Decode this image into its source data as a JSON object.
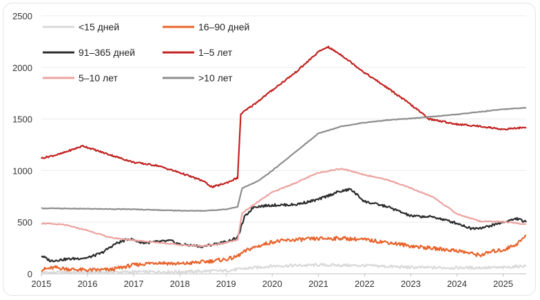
{
  "chart_data": {
    "type": "line",
    "title": "",
    "xlabel": "",
    "ylabel": "",
    "xlim": [
      2015,
      2025.5
    ],
    "ylim": [
      0,
      2500
    ],
    "yticks": [
      0,
      500,
      1000,
      1500,
      2000,
      2500
    ],
    "xticks": [
      2015,
      2016,
      2017,
      2018,
      2019,
      2020,
      2021,
      2022,
      2023,
      2024,
      2025
    ],
    "grid": "horizontal",
    "legend_position": "top-left",
    "series": [
      {
        "name": "<15 дней",
        "color": "#d9d9d9",
        "points": [
          [
            2015,
            12
          ],
          [
            2016,
            14
          ],
          [
            2017,
            18
          ],
          [
            2018,
            20
          ],
          [
            2019,
            30
          ],
          [
            2019.4,
            50
          ],
          [
            2020,
            75
          ],
          [
            2021,
            85
          ],
          [
            2022,
            80
          ],
          [
            2023,
            62
          ],
          [
            2024,
            58
          ],
          [
            2025,
            60
          ],
          [
            2025.5,
            78
          ]
        ]
      },
      {
        "name": "16–90 дней",
        "color": "#e8632b",
        "points": [
          [
            2015,
            40
          ],
          [
            2015.3,
            60
          ],
          [
            2015.6,
            45
          ],
          [
            2016,
            35
          ],
          [
            2016.5,
            40
          ],
          [
            2017,
            85
          ],
          [
            2017.5,
            110
          ],
          [
            2018,
            95
          ],
          [
            2018.5,
            115
          ],
          [
            2019,
            140
          ],
          [
            2019.2,
            160
          ],
          [
            2019.5,
            240
          ],
          [
            2020,
            310
          ],
          [
            2020.5,
            330
          ],
          [
            2021,
            340
          ],
          [
            2021.5,
            345
          ],
          [
            2022,
            330
          ],
          [
            2022.5,
            305
          ],
          [
            2023,
            270
          ],
          [
            2023.5,
            245
          ],
          [
            2024,
            225
          ],
          [
            2024.5,
            180
          ],
          [
            2024.8,
            220
          ],
          [
            2025,
            230
          ],
          [
            2025.3,
            290
          ],
          [
            2025.5,
            370
          ]
        ]
      },
      {
        "name": "91–365 дней",
        "color": "#2b2b2b",
        "points": [
          [
            2015,
            175
          ],
          [
            2015.2,
            125
          ],
          [
            2015.5,
            140
          ],
          [
            2016,
            155
          ],
          [
            2016.3,
            200
          ],
          [
            2016.6,
            290
          ],
          [
            2016.9,
            340
          ],
          [
            2017.2,
            300
          ],
          [
            2017.5,
            310
          ],
          [
            2017.8,
            320
          ],
          [
            2018,
            285
          ],
          [
            2018.5,
            265
          ],
          [
            2019,
            310
          ],
          [
            2019.25,
            350
          ],
          [
            2019.4,
            550
          ],
          [
            2019.6,
            650
          ],
          [
            2020,
            665
          ],
          [
            2020.5,
            670
          ],
          [
            2021,
            720
          ],
          [
            2021.4,
            790
          ],
          [
            2021.7,
            820
          ],
          [
            2022,
            700
          ],
          [
            2022.5,
            650
          ],
          [
            2023,
            560
          ],
          [
            2023.5,
            550
          ],
          [
            2024,
            490
          ],
          [
            2024.3,
            440
          ],
          [
            2024.6,
            450
          ],
          [
            2025,
            500
          ],
          [
            2025.3,
            535
          ],
          [
            2025.5,
            500
          ]
        ]
      },
      {
        "name": "1–5 лет",
        "color": "#c0211f",
        "points": [
          [
            2015,
            1120
          ],
          [
            2015.4,
            1160
          ],
          [
            2015.9,
            1240
          ],
          [
            2016.3,
            1180
          ],
          [
            2017,
            1080
          ],
          [
            2017.5,
            1050
          ],
          [
            2018,
            980
          ],
          [
            2018.5,
            900
          ],
          [
            2018.7,
            840
          ],
          [
            2019,
            880
          ],
          [
            2019.25,
            930
          ],
          [
            2019.32,
            1550
          ],
          [
            2019.6,
            1640
          ],
          [
            2020,
            1780
          ],
          [
            2020.5,
            1950
          ],
          [
            2021,
            2150
          ],
          [
            2021.2,
            2200
          ],
          [
            2021.5,
            2120
          ],
          [
            2022,
            1950
          ],
          [
            2022.5,
            1800
          ],
          [
            2023,
            1640
          ],
          [
            2023.4,
            1500
          ],
          [
            2024,
            1450
          ],
          [
            2024.5,
            1430
          ],
          [
            2025,
            1400
          ],
          [
            2025.5,
            1420
          ]
        ]
      },
      {
        "name": "5–10 лет",
        "color": "#eba3a0",
        "points": [
          [
            2015,
            490
          ],
          [
            2015.5,
            475
          ],
          [
            2016,
            420
          ],
          [
            2016.5,
            350
          ],
          [
            2017,
            325
          ],
          [
            2017.5,
            305
          ],
          [
            2018,
            280
          ],
          [
            2018.5,
            268
          ],
          [
            2019,
            300
          ],
          [
            2019.25,
            330
          ],
          [
            2019.35,
            590
          ],
          [
            2019.7,
            700
          ],
          [
            2020,
            790
          ],
          [
            2020.5,
            880
          ],
          [
            2021,
            980
          ],
          [
            2021.5,
            1020
          ],
          [
            2022,
            960
          ],
          [
            2022.5,
            910
          ],
          [
            2023,
            830
          ],
          [
            2023.5,
            740
          ],
          [
            2024,
            580
          ],
          [
            2024.5,
            510
          ],
          [
            2025,
            505
          ],
          [
            2025.5,
            480
          ]
        ]
      },
      {
        "name": ">10 лет",
        "color": "#8c8c8c",
        "points": [
          [
            2015,
            635
          ],
          [
            2016,
            630
          ],
          [
            2017,
            625
          ],
          [
            2018,
            612
          ],
          [
            2018.5,
            610
          ],
          [
            2019,
            625
          ],
          [
            2019.25,
            650
          ],
          [
            2019.35,
            830
          ],
          [
            2019.7,
            900
          ],
          [
            2020,
            1000
          ],
          [
            2020.5,
            1180
          ],
          [
            2021,
            1360
          ],
          [
            2021.5,
            1430
          ],
          [
            2022,
            1465
          ],
          [
            2022.5,
            1490
          ],
          [
            2023,
            1505
          ],
          [
            2023.5,
            1525
          ],
          [
            2024,
            1545
          ],
          [
            2024.5,
            1570
          ],
          [
            2025,
            1595
          ],
          [
            2025.5,
            1610
          ]
        ]
      }
    ]
  }
}
